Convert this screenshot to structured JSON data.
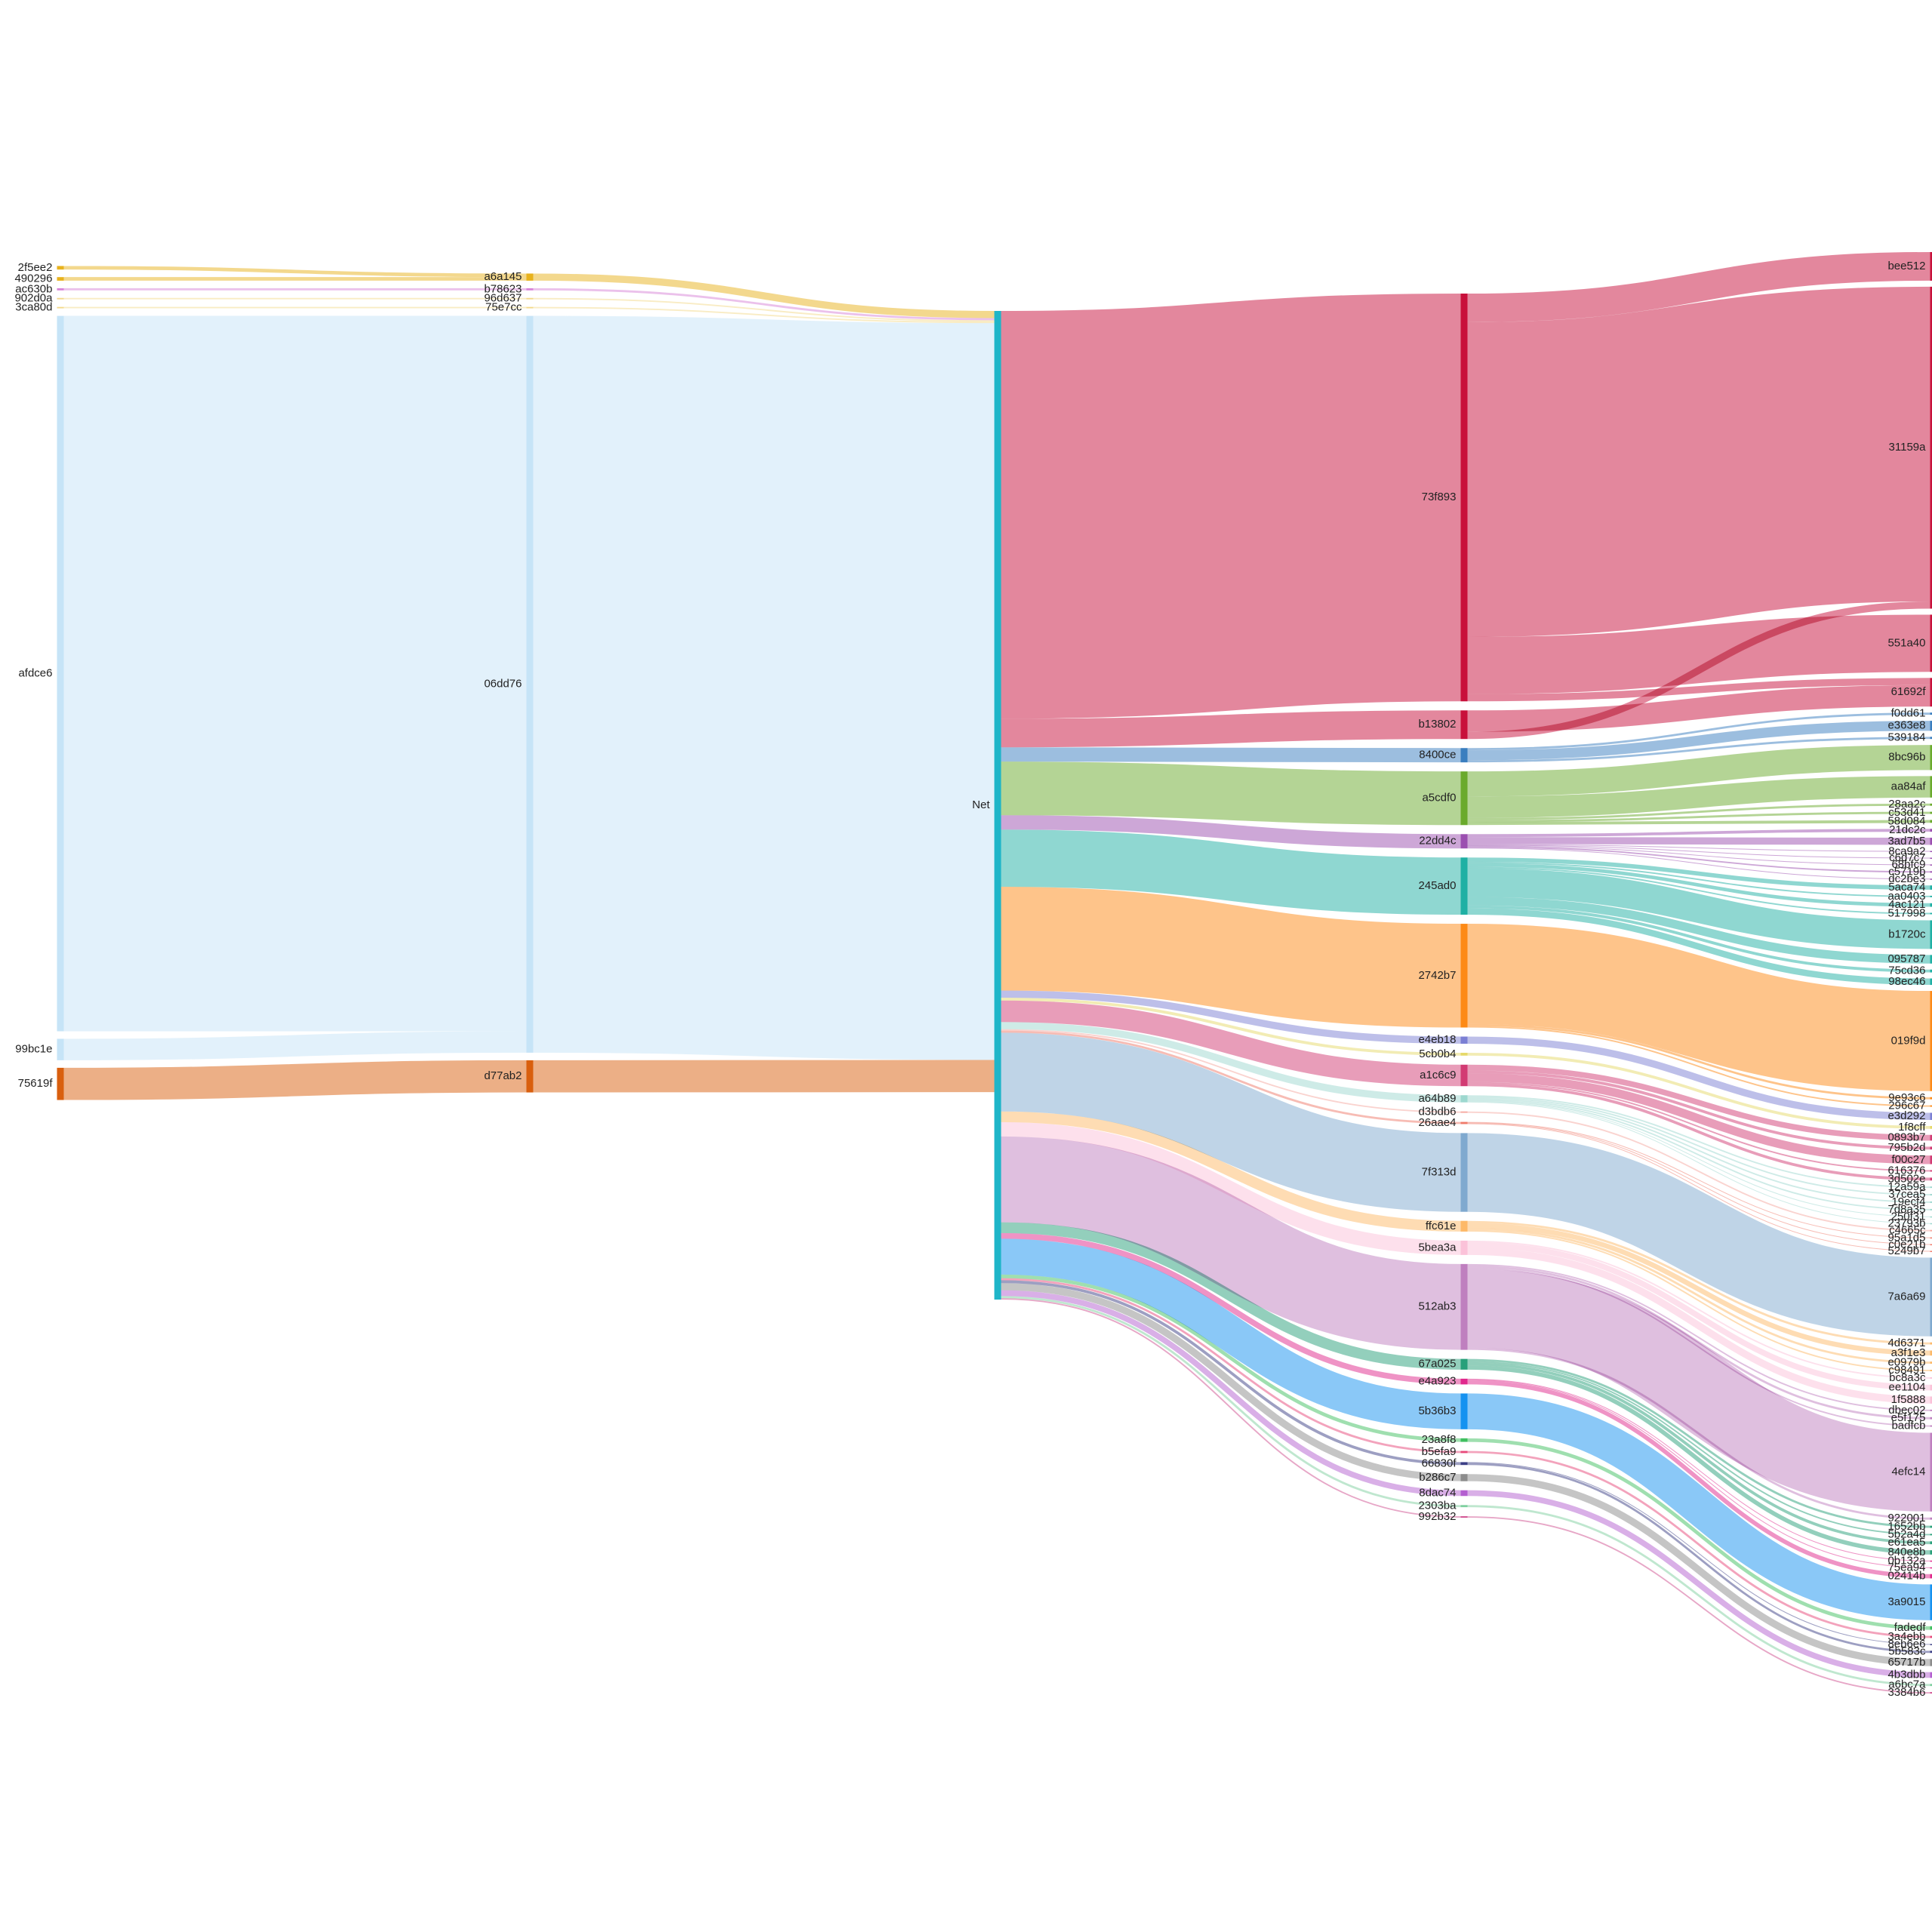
{
  "chart_data": {
    "type": "sankey",
    "title": "",
    "columns": [
      [
        {
          "id": "2f5ee2",
          "color": "#e8b21c"
        },
        {
          "id": "490296",
          "color": "#e8b21c"
        },
        {
          "id": "ac630b",
          "color": "#d884d8"
        },
        {
          "id": "902d0a",
          "color": "#f3d98a"
        },
        {
          "id": "3ca80d",
          "color": "#f3d98a"
        },
        {
          "id": "afdce6",
          "color": "#c6e4f7"
        },
        {
          "id": "99bc1e",
          "color": "#c6e4f7"
        },
        {
          "id": "75619f",
          "color": "#d95f0e"
        }
      ],
      [
        {
          "id": "a6a145",
          "color": "#e8b21c"
        },
        {
          "id": "b78623",
          "color": "#d884d8"
        },
        {
          "id": "96d637",
          "color": "#f3d98a"
        },
        {
          "id": "75e7cc",
          "color": "#f3d98a"
        },
        {
          "id": "06dd76",
          "color": "#c6e4f7"
        },
        {
          "id": "d77ab2",
          "color": "#d95f0e"
        }
      ],
      [
        {
          "id": "Net",
          "color": "#1fb5c8"
        }
      ],
      [
        {
          "id": "73f893",
          "color": "#c8103b"
        },
        {
          "id": "b13802",
          "color": "#c8103b"
        },
        {
          "id": "8400ce",
          "color": "#3a7ebf"
        },
        {
          "id": "a5cdf0",
          "color": "#6aaa2c"
        },
        {
          "id": "22dd4c",
          "color": "#9b4fb0"
        },
        {
          "id": "245ad0",
          "color": "#1fb0a4"
        },
        {
          "id": "2742b7",
          "color": "#fd8a16"
        },
        {
          "id": "e4eb18",
          "color": "#7b7fd4"
        },
        {
          "id": "5cb0b4",
          "color": "#e6d96a"
        },
        {
          "id": "a1c6c9",
          "color": "#d23b73"
        },
        {
          "id": "a64b89",
          "color": "#9dd8cf"
        },
        {
          "id": "d3bdb6",
          "color": "#f6a8a0"
        },
        {
          "id": "26aae4",
          "color": "#f07a6a"
        },
        {
          "id": "7f313d",
          "color": "#7fa9cf"
        },
        {
          "id": "ffc61e",
          "color": "#fdb968"
        },
        {
          "id": "5bea3a",
          "color": "#fbc2d9"
        },
        {
          "id": "512ab3",
          "color": "#bf7fbf"
        },
        {
          "id": "67a025",
          "color": "#28a07a"
        },
        {
          "id": "e4a923",
          "color": "#e0288c"
        },
        {
          "id": "5b36b3",
          "color": "#1592f0"
        },
        {
          "id": "23a8f8",
          "color": "#3fbf5f"
        },
        {
          "id": "b5efa9",
          "color": "#e8487a"
        },
        {
          "id": "66830f",
          "color": "#3c3f86"
        },
        {
          "id": "b286c7",
          "color": "#8c8c8c"
        },
        {
          "id": "8dac74",
          "color": "#b45fd0"
        },
        {
          "id": "2303ba",
          "color": "#7fd0a0"
        },
        {
          "id": "992b32",
          "color": "#d04f8f"
        }
      ],
      [
        {
          "id": "bee512",
          "color": "#c8103b"
        },
        {
          "id": "31159a",
          "color": "#c8103b"
        },
        {
          "id": "551a40",
          "color": "#c8103b"
        },
        {
          "id": "61692f",
          "color": "#c8103b"
        },
        {
          "id": "f0dd61",
          "color": "#3a7ebf"
        },
        {
          "id": "e363e8",
          "color": "#3a7ebf"
        },
        {
          "id": "539184",
          "color": "#3a7ebf"
        },
        {
          "id": "8bc96b",
          "color": "#6aaa2c"
        },
        {
          "id": "aa84af",
          "color": "#6aaa2c"
        },
        {
          "id": "28aa2c",
          "color": "#6aaa2c"
        },
        {
          "id": "c53d41",
          "color": "#6aaa2c"
        },
        {
          "id": "58d084",
          "color": "#6aaa2c"
        },
        {
          "id": "21dc2c",
          "color": "#9b4fb0"
        },
        {
          "id": "3ad7b5",
          "color": "#9b4fb0"
        },
        {
          "id": "8ca9a2",
          "color": "#9b4fb0"
        },
        {
          "id": "c6d7c7",
          "color": "#9b4fb0"
        },
        {
          "id": "68bfc9",
          "color": "#9b4fb0"
        },
        {
          "id": "c5719b",
          "color": "#9b4fb0"
        },
        {
          "id": "dc2be3",
          "color": "#9b4fb0"
        },
        {
          "id": "5aca74",
          "color": "#1fb0a4"
        },
        {
          "id": "aa0403",
          "color": "#1fb0a4"
        },
        {
          "id": "4ac121",
          "color": "#1fb0a4"
        },
        {
          "id": "517998",
          "color": "#1fb0a4"
        },
        {
          "id": "b1720c",
          "color": "#1fb0a4"
        },
        {
          "id": "095787",
          "color": "#1fb0a4"
        },
        {
          "id": "75cd36",
          "color": "#1fb0a4"
        },
        {
          "id": "98ec46",
          "color": "#1fb0a4"
        },
        {
          "id": "019f9d",
          "color": "#fd8a16"
        },
        {
          "id": "9e93c6",
          "color": "#fd8a16"
        },
        {
          "id": "296c67",
          "color": "#fd8a16"
        },
        {
          "id": "e3d292",
          "color": "#7b7fd4"
        },
        {
          "id": "1f8cff",
          "color": "#e6d96a"
        },
        {
          "id": "0893b7",
          "color": "#d23b73"
        },
        {
          "id": "795b2d",
          "color": "#d23b73"
        },
        {
          "id": "f00c27",
          "color": "#d23b73"
        },
        {
          "id": "616376",
          "color": "#d23b73"
        },
        {
          "id": "3d502e",
          "color": "#d23b73"
        },
        {
          "id": "12a59a",
          "color": "#9dd8cf"
        },
        {
          "id": "37cea5",
          "color": "#9dd8cf"
        },
        {
          "id": "19ecf4",
          "color": "#9dd8cf"
        },
        {
          "id": "7d8a35",
          "color": "#9dd8cf"
        },
        {
          "id": "250f31",
          "color": "#9dd8cf"
        },
        {
          "id": "23793b",
          "color": "#9dd8cf"
        },
        {
          "id": "c4665c",
          "color": "#f6a8a0"
        },
        {
          "id": "95a1d5",
          "color": "#f07a6a"
        },
        {
          "id": "c0e21b",
          "color": "#f07a6a"
        },
        {
          "id": "5249b7",
          "color": "#f07a6a"
        },
        {
          "id": "7a6a69",
          "color": "#7fa9cf"
        },
        {
          "id": "4d6371",
          "color": "#fdb968"
        },
        {
          "id": "a3f1e3",
          "color": "#fdb968"
        },
        {
          "id": "e0979b",
          "color": "#fdb968"
        },
        {
          "id": "c98491",
          "color": "#fdb968"
        },
        {
          "id": "bc8a3c",
          "color": "#fbc2d9"
        },
        {
          "id": "ee1104",
          "color": "#fbc2d9"
        },
        {
          "id": "1f5888",
          "color": "#fbc2d9"
        },
        {
          "id": "dbec02",
          "color": "#bf7fbf"
        },
        {
          "id": "e5f175",
          "color": "#bf7fbf"
        },
        {
          "id": "badfcb",
          "color": "#bf7fbf"
        },
        {
          "id": "4efc14",
          "color": "#bf7fbf"
        },
        {
          "id": "922001",
          "color": "#bf7fbf"
        },
        {
          "id": "1652bb",
          "color": "#28a07a"
        },
        {
          "id": "5b2a4d",
          "color": "#28a07a"
        },
        {
          "id": "e61ea5",
          "color": "#28a07a"
        },
        {
          "id": "840e8b",
          "color": "#28a07a"
        },
        {
          "id": "0b132a",
          "color": "#e0288c"
        },
        {
          "id": "75ea94",
          "color": "#e0288c"
        },
        {
          "id": "02414b",
          "color": "#e0288c"
        },
        {
          "id": "3a9015",
          "color": "#1592f0"
        },
        {
          "id": "fadedf",
          "color": "#3fbf5f"
        },
        {
          "id": "3a4ebb",
          "color": "#e8487a"
        },
        {
          "id": "8eb6e6",
          "color": "#3c3f86"
        },
        {
          "id": "5b583c",
          "color": "#3c3f86"
        },
        {
          "id": "65717b",
          "color": "#8c8c8c"
        },
        {
          "id": "4b3dbb",
          "color": "#b45fd0"
        },
        {
          "id": "a6bc7a",
          "color": "#7fd0a0"
        },
        {
          "id": "3384b6",
          "color": "#d04f8f"
        }
      ]
    ],
    "links": [
      [
        "2f5ee2",
        "a6a145",
        0.5
      ],
      [
        "490296",
        "a6a145",
        0.5
      ],
      [
        "ac630b",
        "b78623",
        0.3
      ],
      [
        "902d0a",
        "96d637",
        0.2
      ],
      [
        "3ca80d",
        "75e7cc",
        0.2
      ],
      [
        "afdce6",
        "06dd76",
        100
      ],
      [
        "99bc1e",
        "06dd76",
        3
      ],
      [
        "75619f",
        "d77ab2",
        4.5
      ],
      [
        "a6a145",
        "Net",
        1
      ],
      [
        "b78623",
        "Net",
        0.3
      ],
      [
        "96d637",
        "Net",
        0.2
      ],
      [
        "75e7cc",
        "Net",
        0.2
      ],
      [
        "06dd76",
        "Net",
        103
      ],
      [
        "d77ab2",
        "Net",
        4.5
      ],
      [
        "Net",
        "73f893",
        57
      ],
      [
        "Net",
        "b13802",
        4
      ],
      [
        "Net",
        "8400ce",
        2
      ],
      [
        "Net",
        "a5cdf0",
        7.5
      ],
      [
        "Net",
        "22dd4c",
        2
      ],
      [
        "Net",
        "245ad0",
        8
      ],
      [
        "Net",
        "2742b7",
        14.5
      ],
      [
        "Net",
        "e4eb18",
        1
      ],
      [
        "Net",
        "5cb0b4",
        0.4
      ],
      [
        "Net",
        "a1c6c9",
        3
      ],
      [
        "Net",
        "a64b89",
        1
      ],
      [
        "Net",
        "d3bdb6",
        0.2
      ],
      [
        "Net",
        "26aae4",
        0.3
      ],
      [
        "Net",
        "7f313d",
        11
      ],
      [
        "Net",
        "ffc61e",
        1.5
      ],
      [
        "Net",
        "5bea3a",
        2
      ],
      [
        "Net",
        "512ab3",
        12
      ],
      [
        "Net",
        "67a025",
        1.5
      ],
      [
        "Net",
        "e4a923",
        0.8
      ],
      [
        "Net",
        "5b36b3",
        5
      ],
      [
        "Net",
        "23a8f8",
        0.5
      ],
      [
        "Net",
        "b5efa9",
        0.3
      ],
      [
        "Net",
        "66830f",
        0.4
      ],
      [
        "Net",
        "b286c7",
        1
      ],
      [
        "Net",
        "8dac74",
        0.8
      ],
      [
        "Net",
        "2303ba",
        0.3
      ],
      [
        "Net",
        "992b32",
        0.2
      ],
      [
        "73f893",
        "bee512",
        4
      ],
      [
        "73f893",
        "31159a",
        44
      ],
      [
        "73f893",
        "551a40",
        8
      ],
      [
        "73f893",
        "61692f",
        1
      ],
      [
        "b13802",
        "61692f",
        3
      ],
      [
        "b13802",
        "31159a",
        1
      ],
      [
        "8400ce",
        "f0dd61",
        0.3
      ],
      [
        "8400ce",
        "e363e8",
        1.4
      ],
      [
        "8400ce",
        "539184",
        0.3
      ],
      [
        "a5cdf0",
        "8bc96b",
        3.5
      ],
      [
        "a5cdf0",
        "aa84af",
        3
      ],
      [
        "a5cdf0",
        "28aa2c",
        0.3
      ],
      [
        "a5cdf0",
        "c53d41",
        0.3
      ],
      [
        "a5cdf0",
        "58d084",
        0.4
      ],
      [
        "22dd4c",
        "21dc2c",
        0.4
      ],
      [
        "22dd4c",
        "3ad7b5",
        1
      ],
      [
        "22dd4c",
        "8ca9a2",
        0.1
      ],
      [
        "22dd4c",
        "c6d7c7",
        0.1
      ],
      [
        "22dd4c",
        "68bfc9",
        0.1
      ],
      [
        "22dd4c",
        "c5719b",
        0.2
      ],
      [
        "22dd4c",
        "dc2be3",
        0.1
      ],
      [
        "245ad0",
        "5aca74",
        0.6
      ],
      [
        "245ad0",
        "aa0403",
        0.2
      ],
      [
        "245ad0",
        "4ac121",
        0.5
      ],
      [
        "245ad0",
        "517998",
        0.2
      ],
      [
        "245ad0",
        "b1720c",
        4
      ],
      [
        "245ad0",
        "095787",
        1.2
      ],
      [
        "245ad0",
        "75cd36",
        0.4
      ],
      [
        "245ad0",
        "98ec46",
        0.9
      ],
      [
        "2742b7",
        "019f9d",
        14
      ],
      [
        "2742b7",
        "9e93c6",
        0.3
      ],
      [
        "2742b7",
        "296c67",
        0.2
      ],
      [
        "e4eb18",
        "e3d292",
        1
      ],
      [
        "5cb0b4",
        "1f8cff",
        0.4
      ],
      [
        "a1c6c9",
        "0893b7",
        0.8
      ],
      [
        "a1c6c9",
        "795b2d",
        0.4
      ],
      [
        "a1c6c9",
        "f00c27",
        1.2
      ],
      [
        "a1c6c9",
        "616376",
        0.2
      ],
      [
        "a1c6c9",
        "3d502e",
        0.4
      ],
      [
        "a64b89",
        "12a59a",
        0.2
      ],
      [
        "a64b89",
        "37cea5",
        0.2
      ],
      [
        "a64b89",
        "19ecf4",
        0.2
      ],
      [
        "a64b89",
        "7d8a35",
        0.2
      ],
      [
        "a64b89",
        "250f31",
        0.1
      ],
      [
        "a64b89",
        "23793b",
        0.1
      ],
      [
        "d3bdb6",
        "c4665c",
        0.2
      ],
      [
        "26aae4",
        "95a1d5",
        0.1
      ],
      [
        "26aae4",
        "c0e21b",
        0.1
      ],
      [
        "26aae4",
        "5249b7",
        0.1
      ],
      [
        "7f313d",
        "7a6a69",
        11
      ],
      [
        "ffc61e",
        "4d6371",
        0.3
      ],
      [
        "ffc61e",
        "a3f1e3",
        0.7
      ],
      [
        "ffc61e",
        "e0979b",
        0.3
      ],
      [
        "ffc61e",
        "c98491",
        0.2
      ],
      [
        "5bea3a",
        "bc8a3c",
        0.2
      ],
      [
        "5bea3a",
        "ee1104",
        0.8
      ],
      [
        "5bea3a",
        "1f5888",
        1
      ],
      [
        "512ab3",
        "dbec02",
        0.2
      ],
      [
        "512ab3",
        "e5f175",
        0.3
      ],
      [
        "512ab3",
        "badfcb",
        0.2
      ],
      [
        "512ab3",
        "4efc14",
        11
      ],
      [
        "512ab3",
        "922001",
        0.3
      ],
      [
        "67a025",
        "1652bb",
        0.3
      ],
      [
        "67a025",
        "5b2a4d",
        0.2
      ],
      [
        "67a025",
        "e61ea5",
        0.4
      ],
      [
        "67a025",
        "840e8b",
        0.6
      ],
      [
        "e4a923",
        "0b132a",
        0.1
      ],
      [
        "e4a923",
        "75ea94",
        0.1
      ],
      [
        "e4a923",
        "02414b",
        0.6
      ],
      [
        "5b36b3",
        "3a9015",
        5
      ],
      [
        "23a8f8",
        "fadedf",
        0.5
      ],
      [
        "b5efa9",
        "3a4ebb",
        0.3
      ],
      [
        "66830f",
        "8eb6e6",
        0.1
      ],
      [
        "66830f",
        "5b583c",
        0.3
      ],
      [
        "b286c7",
        "65717b",
        1
      ],
      [
        "8dac74",
        "4b3dbb",
        0.8
      ],
      [
        "2303ba",
        "a6bc7a",
        0.3
      ],
      [
        "992b32",
        "3384b6",
        0.2
      ]
    ]
  }
}
